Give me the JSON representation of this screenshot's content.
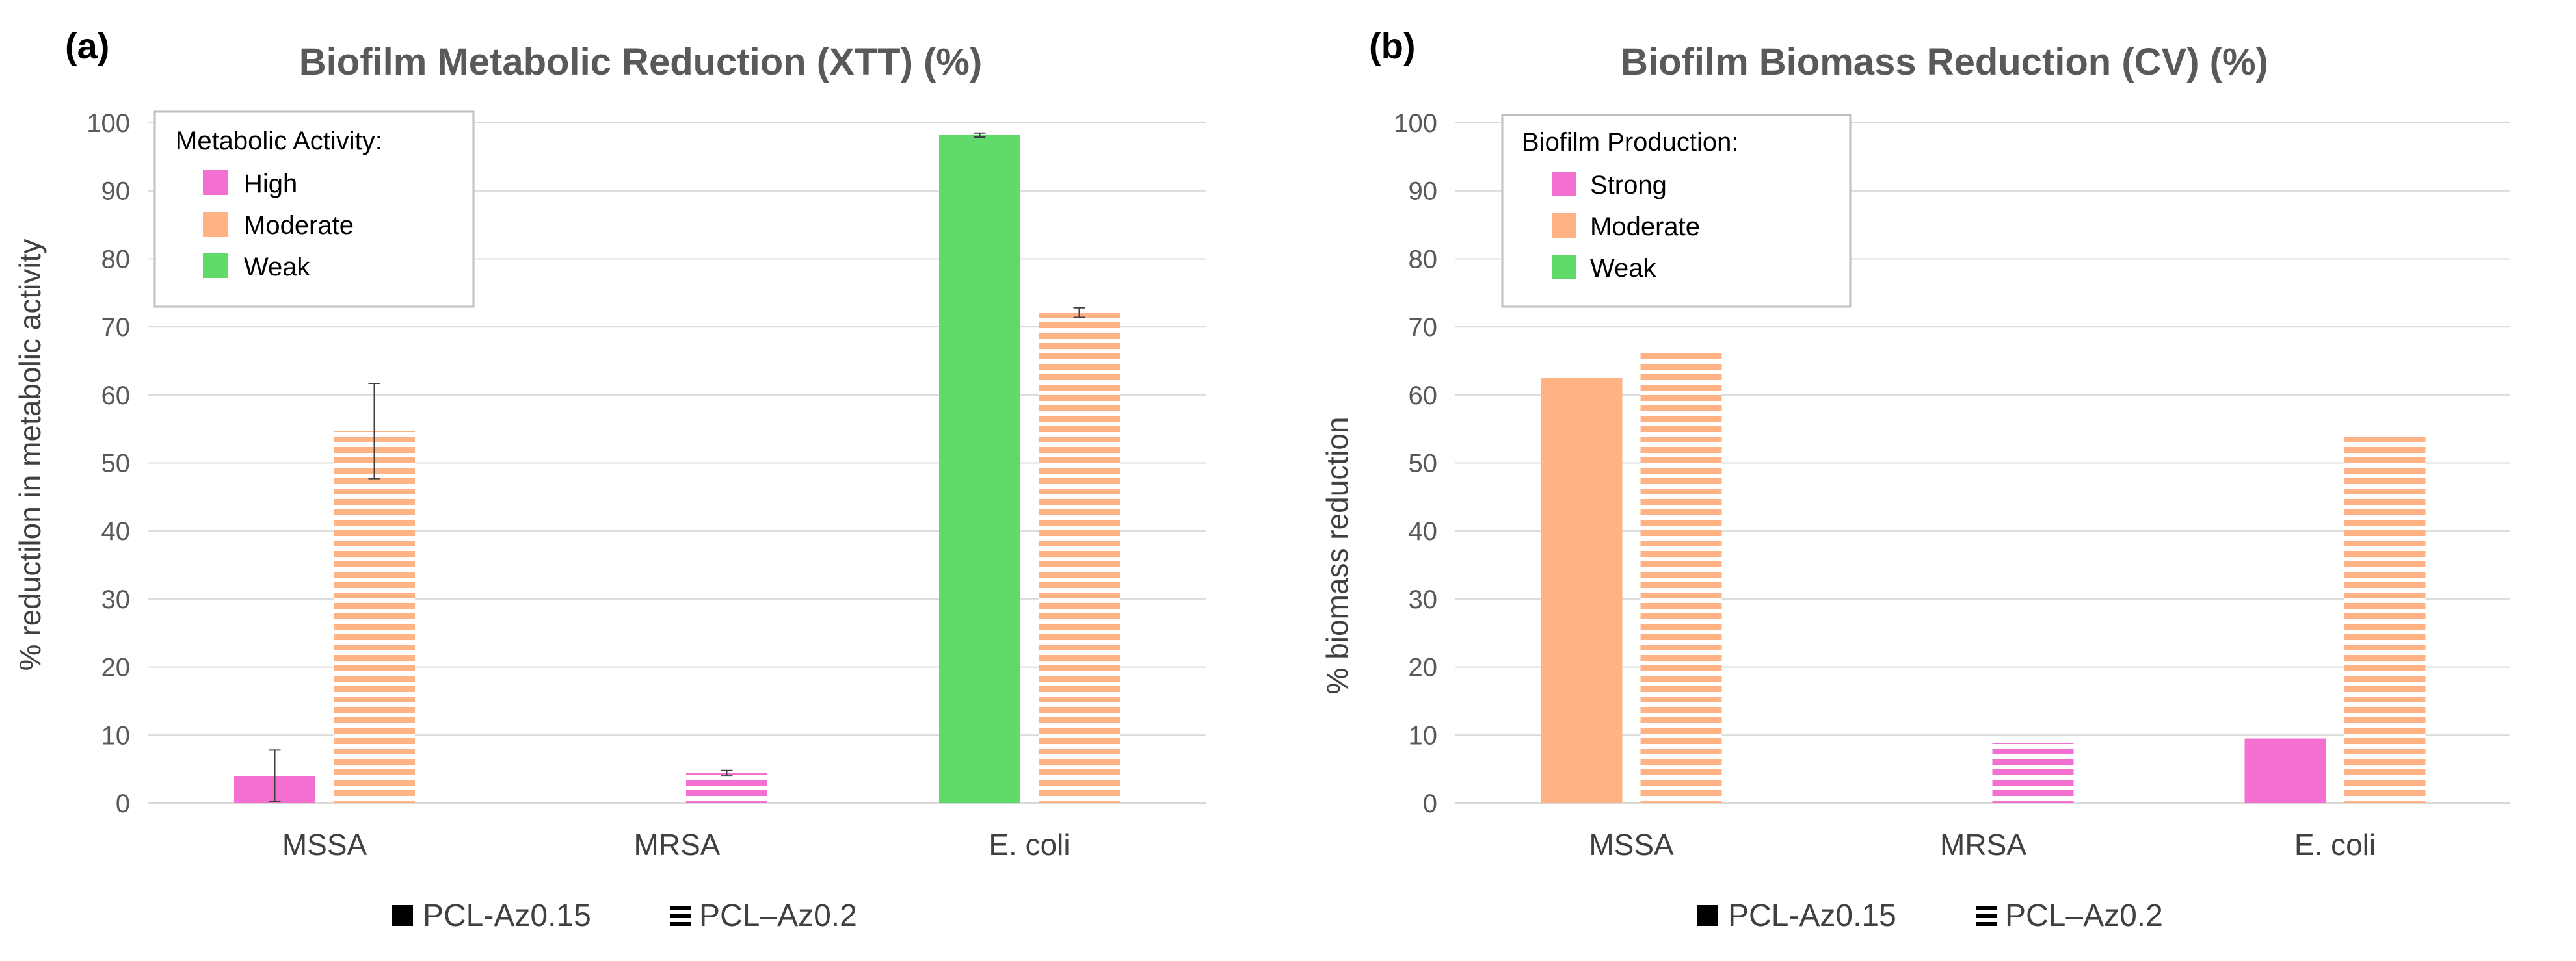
{
  "chart_data": [
    {
      "panel_label": "(a)",
      "type": "bar",
      "title": "Biofilm Metabolic Reduction (XTT) (%)",
      "ylabel": "% reductilon in metabolic activity",
      "xlabel": "",
      "ylim": [
        0,
        100
      ],
      "yticks": [
        0,
        10,
        20,
        30,
        40,
        50,
        60,
        70,
        80,
        90,
        100
      ],
      "grid": true,
      "categories": [
        "MSSA",
        "MRSA",
        "E. coli"
      ],
      "legend": {
        "title": "Metabolic Activity:",
        "placement": "top-left",
        "entries": [
          {
            "label": "High",
            "color": "#f36fd0"
          },
          {
            "label": "Moderate",
            "color": "#ffb384"
          },
          {
            "label": "Weak",
            "color": "#5fda6b"
          }
        ]
      },
      "series": [
        {
          "name": "PCL-Az0.15",
          "pattern": "solid",
          "values": [
            4,
            null,
            98.2
          ],
          "colors": [
            "#f36fd0",
            null,
            "#5fda6b"
          ],
          "errors": [
            3.8,
            null,
            0.3
          ]
        },
        {
          "name": "PCL–Az0.2",
          "pattern": "striped",
          "values": [
            54.7,
            4.4,
            72.1
          ],
          "colors": [
            "#ffb384",
            "#f36fd0",
            "#ffb384"
          ],
          "errors": [
            7,
            0.4,
            0.7
          ]
        }
      ]
    },
    {
      "panel_label": "(b)",
      "type": "bar",
      "title": "Biofilm Biomass Reduction (CV) (%)",
      "ylabel": "% biomass reduction",
      "xlabel": "",
      "ylim": [
        0,
        100
      ],
      "yticks": [
        0,
        10,
        20,
        30,
        40,
        50,
        60,
        70,
        80,
        90,
        100
      ],
      "grid": true,
      "categories": [
        "MSSA",
        "MRSA",
        "E. coli"
      ],
      "legend": {
        "title": "Biofilm Production:",
        "placement": "top-left",
        "entries": [
          {
            "label": "Strong",
            "color": "#f36fd0"
          },
          {
            "label": "Moderate",
            "color": "#ffb384"
          },
          {
            "label": "Weak",
            "color": "#5fda6b"
          }
        ]
      },
      "series": [
        {
          "name": "PCL-Az0.15",
          "pattern": "solid",
          "values": [
            62.5,
            null,
            9.5
          ],
          "colors": [
            "#ffb384",
            null,
            "#f36fd0"
          ],
          "errors": [
            null,
            null,
            null
          ]
        },
        {
          "name": "PCL–Az0.2",
          "pattern": "striped",
          "values": [
            66.4,
            8.8,
            54.3
          ],
          "colors": [
            "#ffb384",
            "#f36fd0",
            "#ffb384"
          ],
          "errors": [
            null,
            null,
            null
          ]
        }
      ]
    }
  ],
  "bottom_legend": {
    "solid_icon": "solid-square-icon",
    "striped_icon": "striped-lines-icon",
    "solid_label": "PCL-Az0.15",
    "striped_label": "PCL–Az0.2"
  }
}
